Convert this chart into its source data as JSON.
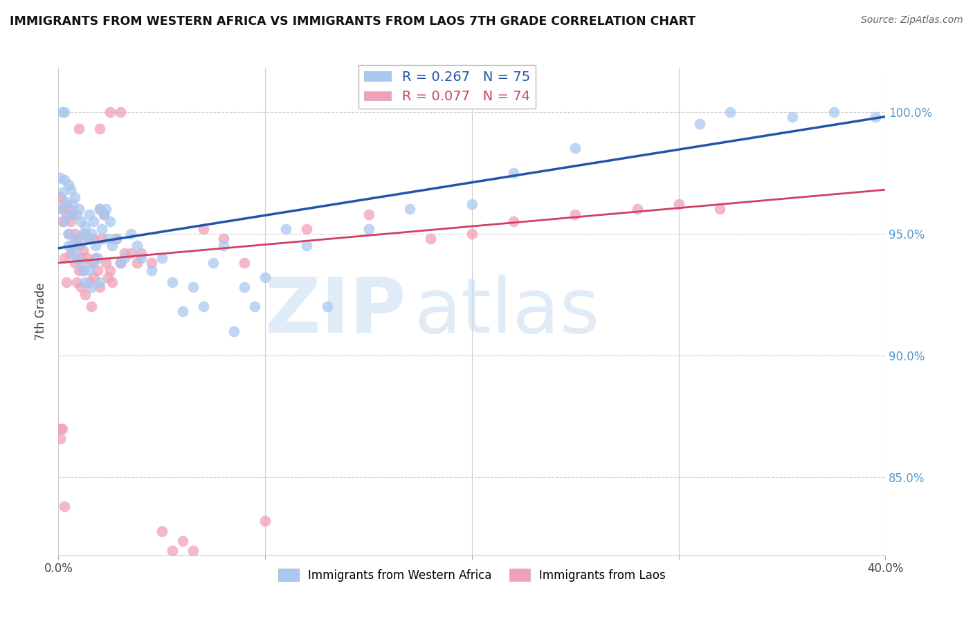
{
  "title": "IMMIGRANTS FROM WESTERN AFRICA VS IMMIGRANTS FROM LAOS 7TH GRADE CORRELATION CHART",
  "source": "Source: ZipAtlas.com",
  "ylabel": "7th Grade",
  "y_tick_labels": [
    "85.0%",
    "90.0%",
    "95.0%",
    "100.0%"
  ],
  "y_tick_values": [
    0.85,
    0.9,
    0.95,
    1.0
  ],
  "xlim": [
    0.0,
    0.4
  ],
  "ylim": [
    0.818,
    1.018
  ],
  "blue_R": 0.267,
  "blue_N": 75,
  "pink_R": 0.077,
  "pink_N": 74,
  "blue_color": "#A8C8F0",
  "pink_color": "#F0A0B8",
  "blue_line_color": "#2255AA",
  "pink_line_color": "#D04060",
  "legend_label_blue": "Immigrants from Western Africa",
  "legend_label_pink": "Immigrants from Laos",
  "watermark_part1": "ZIP",
  "watermark_part2": "atlas",
  "blue_line_x0": 0.0,
  "blue_line_y0": 0.944,
  "blue_line_x1": 0.4,
  "blue_line_y1": 0.998,
  "pink_line_x0": 0.0,
  "pink_line_y0": 0.938,
  "pink_line_x1": 0.4,
  "pink_line_y1": 0.968,
  "blue_scatter_x": [
    0.001,
    0.002,
    0.002,
    0.003,
    0.003,
    0.004,
    0.005,
    0.005,
    0.005,
    0.006,
    0.006,
    0.007,
    0.007,
    0.008,
    0.008,
    0.009,
    0.009,
    0.01,
    0.01,
    0.011,
    0.011,
    0.012,
    0.012,
    0.013,
    0.013,
    0.014,
    0.015,
    0.015,
    0.016,
    0.016,
    0.017,
    0.017,
    0.018,
    0.019,
    0.02,
    0.02,
    0.021,
    0.022,
    0.023,
    0.024,
    0.025,
    0.026,
    0.028,
    0.03,
    0.032,
    0.035,
    0.038,
    0.04,
    0.045,
    0.05,
    0.055,
    0.06,
    0.065,
    0.07,
    0.075,
    0.08,
    0.085,
    0.09,
    0.095,
    0.1,
    0.11,
    0.12,
    0.13,
    0.15,
    0.17,
    0.2,
    0.22,
    0.25,
    0.31,
    0.325,
    0.355,
    0.375,
    0.395,
    0.002,
    0.003
  ],
  "blue_scatter_y": [
    0.973,
    0.967,
    0.96,
    0.972,
    0.955,
    0.963,
    0.97,
    0.95,
    0.945,
    0.968,
    0.958,
    0.962,
    0.942,
    0.965,
    0.948,
    0.958,
    0.94,
    0.96,
    0.945,
    0.955,
    0.938,
    0.95,
    0.935,
    0.953,
    0.93,
    0.948,
    0.958,
    0.935,
    0.95,
    0.928,
    0.955,
    0.938,
    0.945,
    0.94,
    0.96,
    0.93,
    0.952,
    0.958,
    0.96,
    0.948,
    0.955,
    0.945,
    0.948,
    0.938,
    0.94,
    0.95,
    0.945,
    0.94,
    0.935,
    0.94,
    0.93,
    0.918,
    0.928,
    0.92,
    0.938,
    0.945,
    0.91,
    0.928,
    0.92,
    0.932,
    0.952,
    0.945,
    0.92,
    0.952,
    0.96,
    0.962,
    0.975,
    0.985,
    0.995,
    1.0,
    0.998,
    1.0,
    0.998,
    1.0,
    1.0
  ],
  "pink_scatter_x": [
    0.001,
    0.002,
    0.002,
    0.003,
    0.003,
    0.004,
    0.004,
    0.005,
    0.005,
    0.006,
    0.006,
    0.007,
    0.007,
    0.008,
    0.008,
    0.009,
    0.009,
    0.01,
    0.01,
    0.011,
    0.011,
    0.012,
    0.012,
    0.013,
    0.013,
    0.014,
    0.015,
    0.015,
    0.016,
    0.016,
    0.017,
    0.017,
    0.018,
    0.019,
    0.02,
    0.02,
    0.021,
    0.022,
    0.023,
    0.024,
    0.025,
    0.026,
    0.028,
    0.03,
    0.032,
    0.035,
    0.038,
    0.04,
    0.045,
    0.05,
    0.055,
    0.06,
    0.065,
    0.07,
    0.08,
    0.09,
    0.1,
    0.12,
    0.15,
    0.18,
    0.2,
    0.22,
    0.25,
    0.28,
    0.3,
    0.32,
    0.01,
    0.02,
    0.025,
    0.03,
    0.001,
    0.001,
    0.002,
    0.003
  ],
  "pink_scatter_y": [
    0.965,
    0.955,
    0.96,
    0.962,
    0.94,
    0.93,
    0.958,
    0.96,
    0.95,
    0.955,
    0.942,
    0.958,
    0.945,
    0.95,
    0.938,
    0.948,
    0.93,
    0.945,
    0.935,
    0.94,
    0.928,
    0.943,
    0.935,
    0.95,
    0.925,
    0.94,
    0.948,
    0.93,
    0.938,
    0.92,
    0.948,
    0.932,
    0.94,
    0.935,
    0.96,
    0.928,
    0.948,
    0.958,
    0.938,
    0.932,
    0.935,
    0.93,
    0.948,
    0.938,
    0.942,
    0.942,
    0.938,
    0.942,
    0.938,
    0.828,
    0.82,
    0.824,
    0.82,
    0.952,
    0.948,
    0.938,
    0.832,
    0.952,
    0.958,
    0.948,
    0.95,
    0.955,
    0.958,
    0.96,
    0.962,
    0.96,
    0.993,
    0.993,
    1.0,
    1.0,
    0.87,
    0.866,
    0.87,
    0.838
  ]
}
